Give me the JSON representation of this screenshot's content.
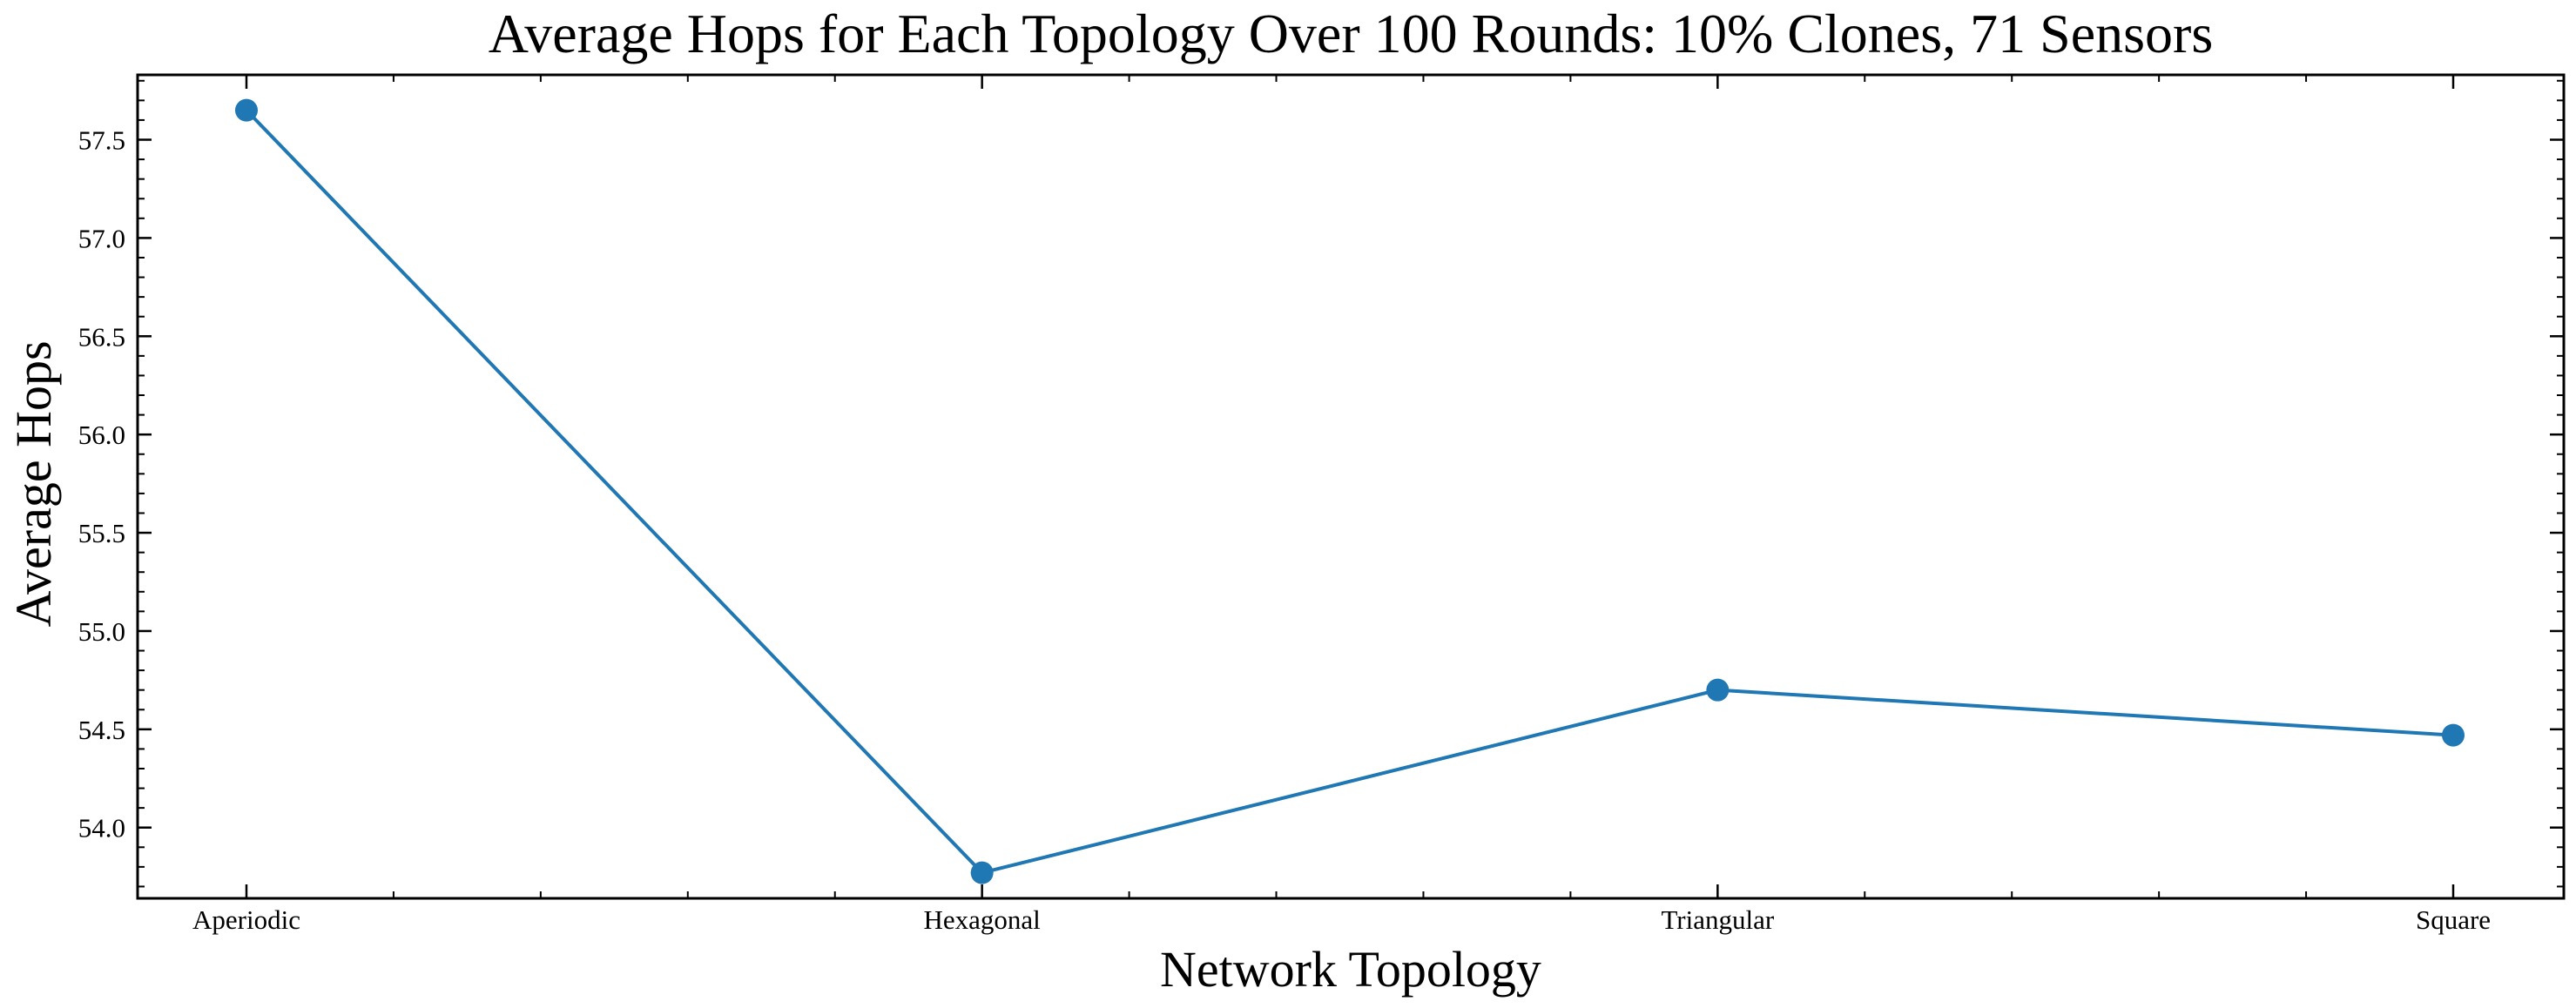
{
  "chart_data": {
    "type": "line",
    "title": "Average Hops for Each Topology Over 100 Rounds: 10% Clones, 71 Sensors",
    "xlabel": "Network Topology",
    "ylabel": "Average Hops",
    "categories": [
      "Aperiodic",
      "Hexagonal",
      "Triangular",
      "Square"
    ],
    "series": [
      {
        "values": [
          57.65,
          53.77,
          54.7,
          54.47
        ],
        "color": "#1f77b4"
      }
    ],
    "ylim": [
      53.64,
      57.83
    ],
    "yticks": [
      54.0,
      54.5,
      55.0,
      55.5,
      56.0,
      56.5,
      57.0,
      57.5
    ],
    "ytick_labels": [
      "54.0",
      "54.5",
      "55.0",
      "55.5",
      "56.0",
      "56.5",
      "57.0",
      "57.5"
    ],
    "grid": false,
    "legend": "none"
  }
}
